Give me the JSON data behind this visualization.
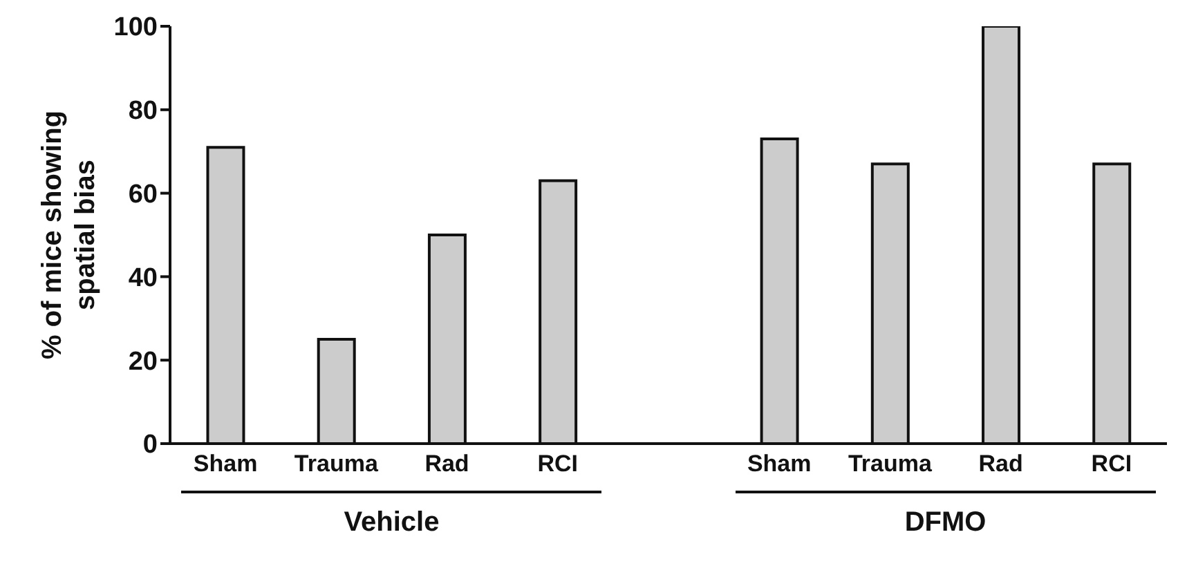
{
  "chart_data": {
    "type": "bar",
    "ylabel": "% of mice showing spatial bias",
    "categories": [
      "Sham",
      "Trauma",
      "Rad",
      "RCI",
      null,
      "Sham",
      "Trauma",
      "Rad",
      "RCI"
    ],
    "values": [
      71,
      25,
      50,
      63,
      null,
      73,
      67,
      100,
      67
    ],
    "color": "#cccccc",
    "ylim": [
      0,
      100
    ],
    "yticks": [
      0,
      20,
      40,
      60,
      80,
      100
    ],
    "annotations": [
      "Vehicle",
      "DFMO"
    ]
  }
}
